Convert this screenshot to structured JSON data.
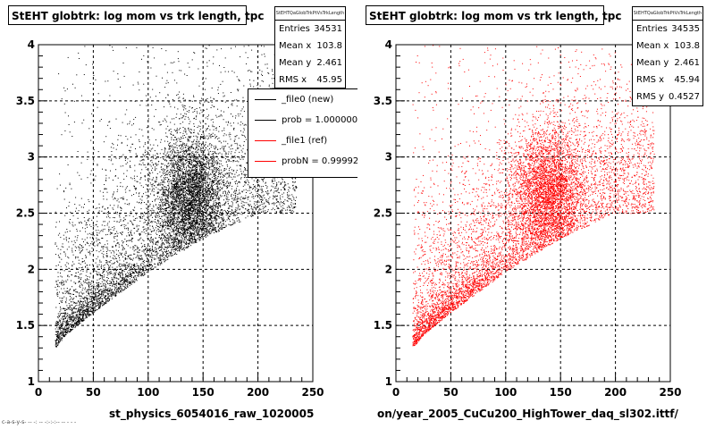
{
  "chart_data": [
    {
      "type": "scatter",
      "title": "StEHT globtrk: log mom vs trk length, tpc",
      "xlabel": "st_physics_6054016_raw_1020005",
      "ylabel": "",
      "xlim": [
        0,
        250
      ],
      "ylim": [
        1,
        4
      ],
      "xticks": [
        "0",
        "50",
        "100",
        "150",
        "200",
        "250"
      ],
      "yticks": [
        "1",
        "1.5",
        "2",
        "2.5",
        "3",
        "3.5",
        "4"
      ],
      "grid": true,
      "marker_color": "#000000",
      "stats": {
        "name": "StEHTQaGlobTrkPtVsTrkLength",
        "rows": [
          {
            "label": "Entries",
            "value": "34531"
          },
          {
            "label": "Mean x",
            "value": "103.8"
          },
          {
            "label": "Mean y",
            "value": "2.461"
          },
          {
            "label": "RMS x",
            "value": "45.95"
          }
        ]
      },
      "legend": {
        "placement": "right",
        "items": [
          {
            "label": "_file0 (new)",
            "color": "#000000"
          },
          {
            "label": "prob = 1.000000",
            "color": "#000000"
          },
          {
            "label": "_file1 (ref)",
            "color": "#ff0000"
          },
          {
            "label": "probN = 0.999925",
            "color": "#ff0000"
          }
        ]
      },
      "distribution": {
        "n_points": 9000,
        "lower_edge": {
          "x": [
            15,
            25,
            50,
            100,
            150,
            200
          ],
          "y": [
            1.3,
            1.42,
            1.62,
            1.98,
            2.28,
            2.5
          ]
        },
        "cluster_center": {
          "x": 138,
          "y": 2.65
        },
        "xmin": 15,
        "xmax": 235,
        "ymax": 4
      }
    },
    {
      "type": "scatter",
      "title": "StEHT globtrk: log mom vs trk length, tpc",
      "xlabel": "on/year_2005_CuCu200_HighTower_daq_sl302.ittf/",
      "ylabel": "",
      "xlim": [
        0,
        250
      ],
      "ylim": [
        1,
        4
      ],
      "xticks": [
        "0",
        "50",
        "100",
        "150",
        "200",
        "250"
      ],
      "yticks": [
        "1",
        "1.5",
        "2",
        "2.5",
        "3",
        "3.5",
        "4"
      ],
      "grid": true,
      "marker_color": "#ff0000",
      "stats": {
        "name": "StEHTQaGlobTrkPtVsTrkLength",
        "rows": [
          {
            "label": "Entries",
            "value": "34535"
          },
          {
            "label": "Mean x",
            "value": "103.8"
          },
          {
            "label": "Mean y",
            "value": "2.461"
          },
          {
            "label": "RMS x",
            "value": "45.94"
          },
          {
            "label": "RMS y",
            "value": "0.4527"
          }
        ]
      },
      "distribution": {
        "n_points": 9000,
        "lower_edge": {
          "x": [
            15,
            25,
            50,
            100,
            150,
            200
          ],
          "y": [
            1.3,
            1.42,
            1.62,
            1.98,
            2.28,
            2.5
          ]
        },
        "cluster_center": {
          "x": 138,
          "y": 2.65
        },
        "xmin": 15,
        "xmax": 235,
        "ymax": 4
      }
    }
  ],
  "footer": {
    "tiny_text": "c-a-s-y-s- -- -: -- -:-:-:-- -- - - -"
  }
}
